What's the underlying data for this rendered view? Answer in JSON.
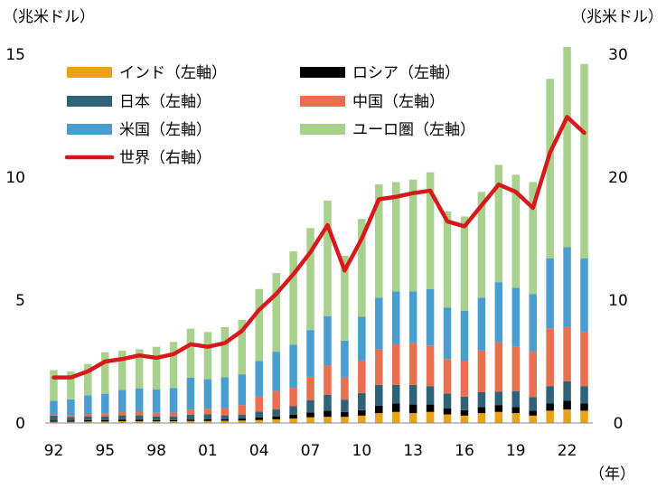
{
  "chart_data": {
    "type": "bar",
    "stacked": true,
    "left_unit": "（兆米ドル）",
    "right_unit": "（兆米ドル）",
    "x_unit": "（年）",
    "left_ylim": [
      0,
      15
    ],
    "left_yticks": [
      "0",
      "5",
      "10",
      "15"
    ],
    "right_ylim": [
      0,
      30
    ],
    "right_yticks": [
      "0",
      "10",
      "20",
      "30"
    ],
    "x_tick_labels": [
      "92",
      "95",
      "98",
      "01",
      "04",
      "07",
      "10",
      "13",
      "16",
      "19",
      "22"
    ],
    "categories": [
      "1992",
      "1993",
      "1994",
      "1995",
      "1996",
      "1997",
      "1998",
      "1999",
      "2000",
      "2001",
      "2002",
      "2003",
      "2004",
      "2005",
      "2006",
      "2007",
      "2008",
      "2009",
      "2010",
      "2011",
      "2012",
      "2013",
      "2014",
      "2015",
      "2016",
      "2017",
      "2018",
      "2019",
      "2020",
      "2021",
      "2022",
      "2023"
    ],
    "series": [
      {
        "name": "インド（左軸）",
        "axis": "left",
        "color": "#E8A317",
        "values": [
          0.05,
          0.05,
          0.06,
          0.06,
          0.07,
          0.07,
          0.07,
          0.07,
          0.08,
          0.08,
          0.09,
          0.1,
          0.12,
          0.15,
          0.18,
          0.23,
          0.25,
          0.25,
          0.3,
          0.4,
          0.45,
          0.4,
          0.45,
          0.35,
          0.3,
          0.4,
          0.45,
          0.4,
          0.3,
          0.5,
          0.55,
          0.5
        ]
      },
      {
        "name": "ロシア（左軸）",
        "axis": "left",
        "color": "#000000",
        "values": [
          0.05,
          0.05,
          0.06,
          0.06,
          0.07,
          0.07,
          0.05,
          0.05,
          0.06,
          0.07,
          0.07,
          0.08,
          0.1,
          0.12,
          0.15,
          0.2,
          0.25,
          0.2,
          0.22,
          0.3,
          0.35,
          0.35,
          0.3,
          0.25,
          0.22,
          0.25,
          0.28,
          0.25,
          0.2,
          0.3,
          0.35,
          0.3
        ]
      },
      {
        "name": "日本（左軸）",
        "axis": "left",
        "color": "#2E6279",
        "values": [
          0.2,
          0.15,
          0.15,
          0.15,
          0.17,
          0.17,
          0.15,
          0.15,
          0.2,
          0.2,
          0.15,
          0.15,
          0.25,
          0.28,
          0.35,
          0.5,
          0.65,
          0.5,
          0.7,
          0.85,
          0.75,
          0.8,
          0.75,
          0.6,
          0.55,
          0.6,
          0.55,
          0.65,
          0.55,
          0.7,
          0.8,
          0.7
        ]
      },
      {
        "name": "中国（左軸）",
        "axis": "left",
        "color": "#E8704F",
        "values": [
          0.05,
          0.06,
          0.1,
          0.12,
          0.13,
          0.15,
          0.14,
          0.15,
          0.2,
          0.23,
          0.3,
          0.4,
          0.6,
          0.75,
          0.75,
          0.95,
          1.2,
          0.9,
          1.3,
          1.45,
          1.65,
          1.7,
          1.65,
          1.4,
          1.45,
          1.7,
          2.0,
          1.8,
          1.85,
          2.35,
          2.2,
          2.2
        ]
      },
      {
        "name": "米国（左軸）",
        "axis": "left",
        "color": "#4A9ECF",
        "values": [
          0.55,
          0.65,
          0.75,
          0.8,
          0.9,
          0.95,
          0.95,
          1.0,
          1.3,
          1.2,
          1.25,
          1.25,
          1.45,
          1.6,
          1.75,
          1.9,
          2.0,
          1.5,
          1.8,
          2.1,
          2.15,
          2.1,
          2.3,
          2.1,
          2.05,
          2.15,
          2.45,
          2.4,
          2.35,
          2.85,
          3.25,
          3.0
        ]
      },
      {
        "name": "ユーロ圏（左軸）",
        "axis": "left",
        "color": "#A9D18E",
        "values": [
          1.25,
          1.14,
          1.28,
          1.69,
          1.6,
          1.59,
          1.74,
          1.88,
          2.0,
          1.92,
          2.04,
          2.22,
          2.93,
          3.2,
          3.8,
          4.15,
          4.7,
          3.45,
          3.98,
          4.6,
          4.45,
          4.55,
          4.75,
          3.9,
          3.83,
          4.3,
          4.77,
          4.6,
          4.55,
          7.3,
          8.15,
          7.9
        ]
      },
      {
        "name": "世界（右軸）",
        "axis": "right",
        "color": "#D7191C",
        "values": [
          3.7,
          3.7,
          4.2,
          5.0,
          5.2,
          5.5,
          5.3,
          5.6,
          6.4,
          6.2,
          6.5,
          7.5,
          9.2,
          10.5,
          12.1,
          13.9,
          16.1,
          12.4,
          15.0,
          18.2,
          18.4,
          18.7,
          18.9,
          16.4,
          16.0,
          17.7,
          19.4,
          18.8,
          17.5,
          22.0,
          24.9,
          23.6
        ]
      }
    ]
  }
}
